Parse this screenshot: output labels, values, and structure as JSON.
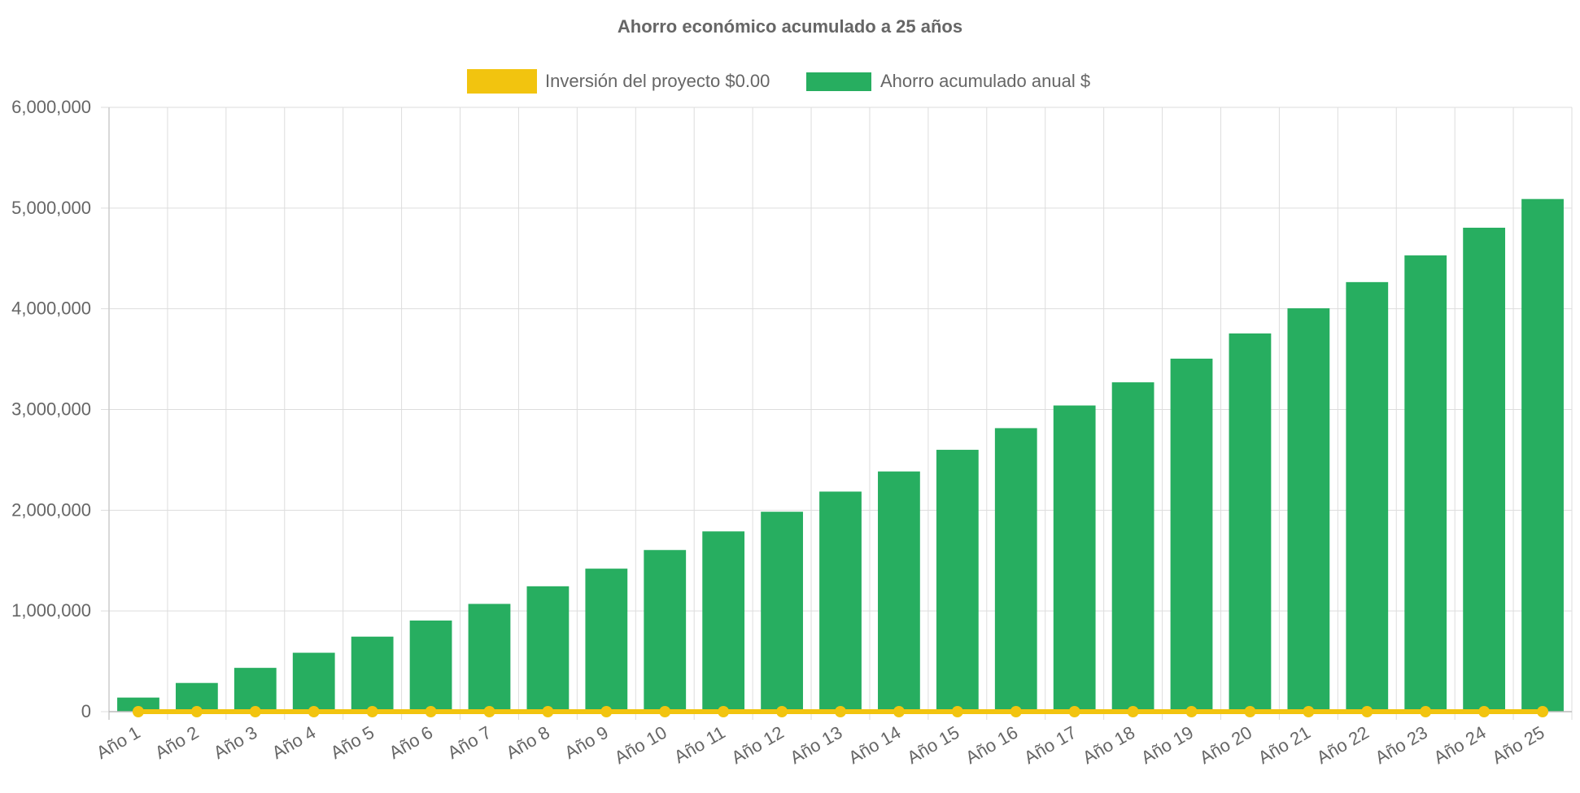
{
  "chart_data": {
    "type": "bar",
    "title": "Ahorro económico acumulado a 25 años",
    "categories": [
      "Año 1",
      "Año 2",
      "Año 3",
      "Año 4",
      "Año 5",
      "Año 6",
      "Año 7",
      "Año 8",
      "Año 9",
      "Año 10",
      "Año 11",
      "Año 12",
      "Año 13",
      "Año 14",
      "Año 15",
      "Año 16",
      "Año 17",
      "Año 18",
      "Año 19",
      "Año 20",
      "Año 21",
      "Año 22",
      "Año 23",
      "Año 24",
      "Año 25"
    ],
    "series": [
      {
        "name": "Inversión del proyecto $0.00",
        "type": "line",
        "color": "#f2c40f",
        "values": [
          0,
          0,
          0,
          0,
          0,
          0,
          0,
          0,
          0,
          0,
          0,
          0,
          0,
          0,
          0,
          0,
          0,
          0,
          0,
          0,
          0,
          0,
          0,
          0,
          0
        ]
      },
      {
        "name": "Ahorro acumulado anual $",
        "type": "bar",
        "color": "#27ae60",
        "values": [
          140000,
          285000,
          435000,
          585000,
          745000,
          905000,
          1070000,
          1245000,
          1420000,
          1605000,
          1790000,
          1985000,
          2185000,
          2385000,
          2600000,
          2815000,
          3040000,
          3270000,
          3505000,
          3755000,
          4005000,
          4265000,
          4530000,
          4805000,
          5090000
        ]
      }
    ],
    "ylim": [
      0,
      6000000
    ],
    "yticks": [
      0,
      1000000,
      2000000,
      3000000,
      4000000,
      5000000,
      6000000
    ],
    "ytick_labels": [
      "0",
      "1,000,000",
      "2,000,000",
      "3,000,000",
      "4,000,000",
      "5,000,000",
      "6,000,000"
    ],
    "xlabel": "",
    "ylabel": "",
    "grid": true,
    "legend_position": "top-center"
  }
}
